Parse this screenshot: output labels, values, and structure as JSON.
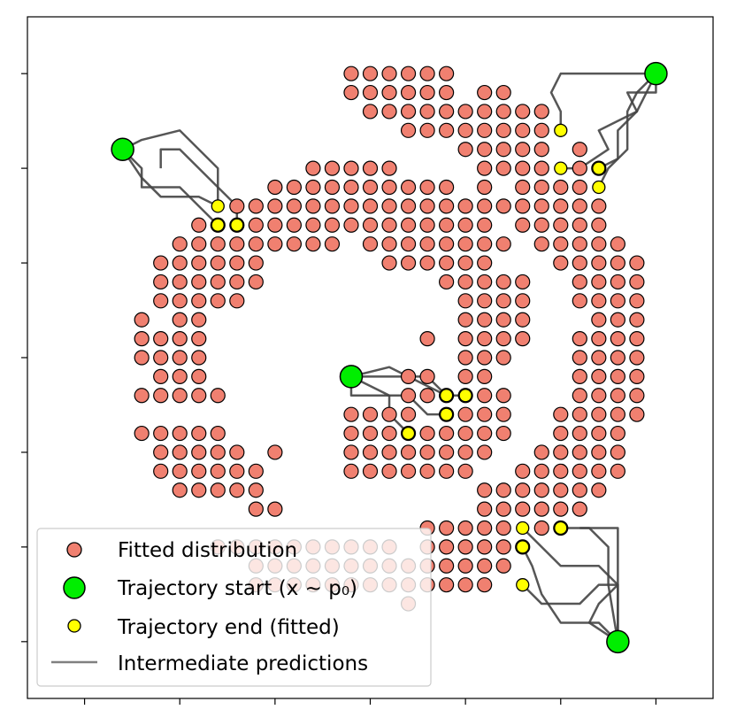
{
  "chart_data": {
    "type": "scatter",
    "title": "",
    "xlabel": "",
    "ylabel": "",
    "xlim": [
      -0.6,
      6.6
    ],
    "ylim": [
      -0.6,
      6.6
    ],
    "ticks": [
      0,
      1,
      2,
      3,
      4,
      5,
      6
    ],
    "tick_labels_shown": false,
    "grid": false,
    "legend": {
      "position": "lower-left",
      "entries": [
        {
          "label": "Fitted distribution",
          "kind": "fitted"
        },
        {
          "label": "Trajectory start (x ~ p₀)",
          "kind": "start"
        },
        {
          "label": "Trajectory end (fitted)",
          "kind": "end"
        },
        {
          "label": "Intermediate predictions",
          "kind": "line"
        }
      ]
    },
    "colors": {
      "fitted": "#f08070",
      "start": "#00ee00",
      "end": "#ffff00",
      "line": "#444444",
      "legend_line": "#808080",
      "edge": "#000000"
    },
    "fitted_grid_step": 0.2,
    "fitted_rows": [
      {
        "y": 6.0,
        "segments": [
          [
            2.8,
            3.8
          ]
        ]
      },
      {
        "y": 5.8,
        "segments": [
          [
            2.8,
            3.8
          ],
          [
            4.2,
            4.4
          ]
        ]
      },
      {
        "y": 5.6,
        "segments": [
          [
            3.0,
            4.8
          ]
        ]
      },
      {
        "y": 5.4,
        "segments": [
          [
            3.4,
            4.8
          ]
        ]
      },
      {
        "y": 5.2,
        "segments": [
          [
            4.0,
            4.8
          ],
          [
            5.2,
            5.2
          ]
        ]
      },
      {
        "y": 5.0,
        "segments": [
          [
            2.4,
            3.2
          ],
          [
            4.2,
            4.8
          ],
          [
            5.2,
            5.4
          ]
        ]
      },
      {
        "y": 4.8,
        "segments": [
          [
            2.0,
            3.8
          ],
          [
            4.2,
            4.2
          ],
          [
            4.6,
            5.2
          ]
        ]
      },
      {
        "y": 4.6,
        "segments": [
          [
            1.6,
            3.6
          ],
          [
            3.8,
            5.4
          ]
        ]
      },
      {
        "y": 4.4,
        "segments": [
          [
            1.2,
            4.2
          ],
          [
            4.6,
            5.4
          ]
        ]
      },
      {
        "y": 4.2,
        "segments": [
          [
            1.0,
            2.6
          ],
          [
            3.0,
            4.4
          ],
          [
            4.8,
            5.6
          ]
        ]
      },
      {
        "y": 4.0,
        "segments": [
          [
            0.8,
            1.8
          ],
          [
            3.2,
            4.2
          ],
          [
            5.0,
            5.8
          ]
        ]
      },
      {
        "y": 3.8,
        "segments": [
          [
            0.8,
            1.8
          ],
          [
            3.8,
            4.6
          ],
          [
            5.2,
            5.8
          ]
        ]
      },
      {
        "y": 3.6,
        "segments": [
          [
            0.8,
            1.6
          ],
          [
            4.0,
            4.6
          ],
          [
            5.2,
            5.8
          ]
        ]
      },
      {
        "y": 3.4,
        "segments": [
          [
            0.6,
            0.6
          ],
          [
            1.0,
            1.2
          ],
          [
            4.0,
            4.6
          ],
          [
            5.4,
            5.8
          ]
        ]
      },
      {
        "y": 3.2,
        "segments": [
          [
            0.6,
            1.2
          ],
          [
            3.6,
            3.6
          ],
          [
            4.0,
            4.6
          ],
          [
            5.2,
            5.8
          ]
        ]
      },
      {
        "y": 3.0,
        "segments": [
          [
            0.6,
            1.2
          ],
          [
            4.0,
            4.4
          ],
          [
            5.2,
            5.8
          ]
        ]
      },
      {
        "y": 2.8,
        "segments": [
          [
            0.8,
            1.2
          ],
          [
            3.4,
            3.6
          ],
          [
            4.0,
            4.2
          ],
          [
            5.2,
            5.8
          ]
        ]
      },
      {
        "y": 2.6,
        "segments": [
          [
            0.6,
            1.4
          ],
          [
            3.4,
            4.4
          ],
          [
            5.2,
            5.8
          ]
        ]
      },
      {
        "y": 2.4,
        "segments": [
          [
            2.8,
            3.4
          ],
          [
            3.8,
            4.4
          ],
          [
            5.0,
            5.8
          ]
        ]
      },
      {
        "y": 2.2,
        "segments": [
          [
            0.6,
            1.4
          ],
          [
            2.8,
            4.4
          ],
          [
            5.0,
            5.6
          ]
        ]
      },
      {
        "y": 2.0,
        "segments": [
          [
            0.8,
            1.6
          ],
          [
            2.0,
            2.0
          ],
          [
            2.8,
            4.2
          ],
          [
            4.8,
            5.6
          ]
        ]
      },
      {
        "y": 1.8,
        "segments": [
          [
            0.8,
            1.8
          ],
          [
            2.8,
            4.0
          ],
          [
            4.6,
            5.6
          ]
        ]
      },
      {
        "y": 1.6,
        "segments": [
          [
            1.0,
            1.8
          ],
          [
            4.2,
            5.4
          ]
        ]
      },
      {
        "y": 1.4,
        "segments": [
          [
            1.8,
            2.0
          ],
          [
            4.2,
            5.2
          ]
        ]
      },
      {
        "y": 1.2,
        "segments": [
          [
            3.6,
            4.4
          ],
          [
            4.8,
            5.0
          ]
        ]
      },
      {
        "y": 1.0,
        "segments": [
          [
            1.4,
            3.2
          ],
          [
            3.6,
            4.6
          ]
        ]
      },
      {
        "y": 0.8,
        "segments": [
          [
            1.8,
            3.8
          ],
          [
            4.0,
            4.4
          ]
        ]
      },
      {
        "y": 0.6,
        "segments": [
          [
            1.8,
            4.2
          ]
        ]
      },
      {
        "y": 0.4,
        "segments": [
          [
            3.4,
            3.4
          ]
        ]
      }
    ],
    "starts": [
      {
        "x": 0.4,
        "y": 5.2
      },
      {
        "x": 6.0,
        "y": 6.0
      },
      {
        "x": 2.8,
        "y": 2.8
      },
      {
        "x": 5.6,
        "y": 0.0
      }
    ],
    "ends": [
      {
        "x": 1.4,
        "y": 4.6
      },
      {
        "x": 1.4,
        "y": 4.4
      },
      {
        "x": 1.6,
        "y": 4.4
      },
      {
        "x": 5.0,
        "y": 5.4
      },
      {
        "x": 5.0,
        "y": 5.0
      },
      {
        "x": 5.4,
        "y": 5.0
      },
      {
        "x": 5.4,
        "y": 4.8
      },
      {
        "x": 3.8,
        "y": 2.6
      },
      {
        "x": 4.0,
        "y": 2.6
      },
      {
        "x": 3.8,
        "y": 2.4
      },
      {
        "x": 3.4,
        "y": 2.2
      },
      {
        "x": 4.6,
        "y": 1.2
      },
      {
        "x": 5.0,
        "y": 1.2
      },
      {
        "x": 4.6,
        "y": 1.0
      },
      {
        "x": 4.6,
        "y": 0.6
      }
    ],
    "trajectories": [
      [
        [
          0.4,
          5.2
        ],
        [
          0.6,
          5.3
        ],
        [
          1.0,
          5.4
        ],
        [
          1.2,
          5.2
        ],
        [
          1.4,
          5.0
        ],
        [
          1.4,
          4.8
        ],
        [
          1.6,
          4.6
        ],
        [
          1.6,
          4.4
        ]
      ],
      [
        [
          0.4,
          5.2
        ],
        [
          0.6,
          5.0
        ],
        [
          0.6,
          4.8
        ],
        [
          1.0,
          4.8
        ],
        [
          1.2,
          4.6
        ],
        [
          1.4,
          4.4
        ]
      ],
      [
        [
          0.4,
          5.2
        ],
        [
          0.6,
          4.9
        ],
        [
          0.8,
          4.7
        ],
        [
          1.2,
          4.7
        ],
        [
          1.4,
          4.6
        ]
      ],
      [
        [
          0.8,
          5.0
        ],
        [
          0.8,
          5.2
        ],
        [
          1.0,
          5.2
        ],
        [
          1.2,
          5.0
        ],
        [
          1.4,
          4.8
        ],
        [
          1.4,
          4.6
        ]
      ],
      [
        [
          6.0,
          6.0
        ],
        [
          5.0,
          6.0
        ],
        [
          4.9,
          5.8
        ],
        [
          5.0,
          5.6
        ],
        [
          5.0,
          5.4
        ]
      ],
      [
        [
          6.0,
          6.0
        ],
        [
          6.0,
          5.8
        ],
        [
          5.7,
          5.8
        ],
        [
          5.8,
          5.6
        ],
        [
          5.6,
          5.4
        ],
        [
          5.6,
          5.1
        ],
        [
          5.4,
          5.0
        ]
      ],
      [
        [
          6.0,
          6.0
        ],
        [
          5.8,
          5.8
        ],
        [
          5.7,
          5.6
        ],
        [
          5.7,
          5.4
        ],
        [
          5.7,
          5.2
        ],
        [
          5.5,
          5.0
        ],
        [
          5.4,
          4.8
        ]
      ],
      [
        [
          6.0,
          6.0
        ],
        [
          5.8,
          5.6
        ],
        [
          5.6,
          5.5
        ],
        [
          5.4,
          5.4
        ],
        [
          5.5,
          5.2
        ],
        [
          5.2,
          5.0
        ],
        [
          5.0,
          5.0
        ]
      ],
      [
        [
          2.8,
          2.8
        ],
        [
          3.0,
          2.8
        ],
        [
          3.2,
          2.8
        ],
        [
          3.4,
          2.8
        ],
        [
          3.6,
          2.8
        ],
        [
          3.8,
          2.6
        ]
      ],
      [
        [
          2.8,
          2.8
        ],
        [
          3.2,
          2.9
        ],
        [
          3.6,
          2.7
        ],
        [
          3.8,
          2.6
        ],
        [
          4.0,
          2.6
        ]
      ],
      [
        [
          2.8,
          2.8
        ],
        [
          2.8,
          2.6
        ],
        [
          3.2,
          2.6
        ],
        [
          3.4,
          2.6
        ],
        [
          3.6,
          2.4
        ],
        [
          3.8,
          2.4
        ]
      ],
      [
        [
          2.8,
          2.8
        ],
        [
          3.2,
          2.6
        ],
        [
          3.2,
          2.4
        ],
        [
          3.4,
          2.2
        ]
      ],
      [
        [
          5.6,
          0.0
        ],
        [
          5.6,
          0.4
        ],
        [
          5.6,
          0.6
        ],
        [
          5.4,
          0.6
        ],
        [
          5.2,
          0.4
        ],
        [
          4.8,
          0.4
        ],
        [
          4.6,
          0.6
        ]
      ],
      [
        [
          5.6,
          0.0
        ],
        [
          5.4,
          0.2
        ],
        [
          5.0,
          0.2
        ],
        [
          4.8,
          0.5
        ],
        [
          4.7,
          0.8
        ],
        [
          4.6,
          1.0
        ]
      ],
      [
        [
          5.6,
          0.0
        ],
        [
          5.6,
          0.6
        ],
        [
          5.4,
          0.8
        ],
        [
          5.0,
          0.8
        ],
        [
          4.8,
          1.0
        ],
        [
          4.6,
          1.2
        ]
      ],
      [
        [
          5.6,
          0.0
        ],
        [
          5.5,
          0.6
        ],
        [
          5.5,
          1.0
        ],
        [
          5.3,
          1.2
        ],
        [
          5.2,
          1.2
        ],
        [
          5.0,
          1.2
        ]
      ],
      [
        [
          5.6,
          0.0
        ],
        [
          5.3,
          0.2
        ],
        [
          5.4,
          0.4
        ],
        [
          5.6,
          0.6
        ],
        [
          5.6,
          1.2
        ],
        [
          5.2,
          1.2
        ]
      ]
    ]
  }
}
